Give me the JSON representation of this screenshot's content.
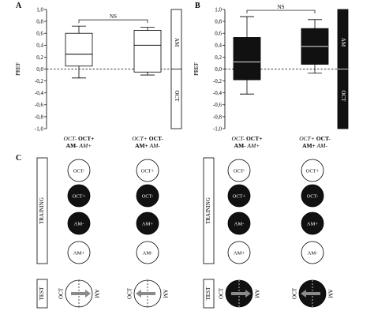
{
  "panels": {
    "A": "A",
    "B": "B",
    "C": "C"
  },
  "chart_data": [
    {
      "type": "box",
      "panel": "A",
      "ylabel": "PREF",
      "ylim": [
        -1.0,
        1.0
      ],
      "yticks": [
        "1,0",
        "0,8",
        "0,6",
        "0,4",
        "0,2",
        "0,0",
        "-0,2",
        "-0,4",
        "-0,6",
        "-0,8",
        "-1,0"
      ],
      "ytick_values": [
        1.0,
        0.8,
        0.6,
        0.4,
        0.2,
        0.0,
        -0.2,
        -0.4,
        -0.6,
        -0.8,
        -1.0
      ],
      "significance": "NS",
      "side_labels": {
        "top": "AM",
        "bottom": "OCT"
      },
      "fill": "#ffffff",
      "boxes": [
        {
          "label_parts": [
            [
              "OCT-",
              "i"
            ],
            [
              " OCT+",
              "b"
            ],
            [
              "AM-",
              "b"
            ],
            [
              " AM+",
              "i"
            ]
          ],
          "whisker_low": -0.15,
          "q1": 0.05,
          "median": 0.25,
          "q3": 0.6,
          "whisker_high": 0.72
        },
        {
          "label_parts": [
            [
              "OCT+",
              "i"
            ],
            [
              " OCT-",
              "b"
            ],
            [
              "AM+",
              "b"
            ],
            [
              " AM-",
              "i"
            ]
          ],
          "whisker_low": -0.1,
          "q1": -0.05,
          "median": 0.4,
          "q3": 0.65,
          "whisker_high": 0.7
        }
      ]
    },
    {
      "type": "box",
      "panel": "B",
      "ylabel": "PREF",
      "ylim": [
        -1.0,
        1.0
      ],
      "yticks": [
        "1,0",
        "0,8",
        "0,6",
        "0,4",
        "0,2",
        "0,0",
        "-0,2",
        "-0,4",
        "-0,6",
        "-0,8",
        "-1,0"
      ],
      "ytick_values": [
        1.0,
        0.8,
        0.6,
        0.4,
        0.2,
        0.0,
        -0.2,
        -0.4,
        -0.6,
        -0.8,
        -1.0
      ],
      "significance": "NS",
      "side_labels": {
        "top": "AM",
        "bottom": "OCT"
      },
      "fill": "#111111",
      "boxes": [
        {
          "label_parts": [
            [
              "OCT-",
              "i"
            ],
            [
              " OCT+",
              "b"
            ],
            [
              "AM-",
              "b"
            ],
            [
              " AM+",
              "i"
            ]
          ],
          "whisker_low": -0.42,
          "q1": -0.18,
          "median": 0.12,
          "q3": 0.53,
          "whisker_high": 0.88
        },
        {
          "label_parts": [
            [
              "OCT+",
              "i"
            ],
            [
              " OCT-",
              "b"
            ],
            [
              "AM+",
              "b"
            ],
            [
              " AM-",
              "i"
            ]
          ],
          "whisker_low": -0.07,
          "q1": 0.08,
          "median": 0.38,
          "q3": 0.68,
          "whisker_high": 0.83
        }
      ]
    }
  ],
  "panel_c": {
    "training_label": "TRAINING",
    "test_label": "TEST",
    "test_left": "OCT",
    "test_right": "AM",
    "groups": [
      {
        "dark": false,
        "columns": [
          {
            "circles": [
              {
                "text": "OCT-",
                "filled": false
              },
              {
                "text": "OCT+",
                "filled": true
              },
              {
                "text": "AM-",
                "filled": true
              },
              {
                "text": "AM+",
                "filled": false
              }
            ],
            "arrow": "right"
          },
          {
            "circles": [
              {
                "text": "OCT+",
                "filled": false
              },
              {
                "text": "OCT-",
                "filled": true
              },
              {
                "text": "AM+",
                "filled": true
              },
              {
                "text": "AM-",
                "filled": false
              }
            ],
            "arrow": "left"
          }
        ]
      },
      {
        "dark": true,
        "columns": [
          {
            "circles": [
              {
                "text": "OCT-",
                "filled": false
              },
              {
                "text": "OCT+",
                "filled": true
              },
              {
                "text": "AM-",
                "filled": true
              },
              {
                "text": "AM+",
                "filled": false
              }
            ],
            "arrow": "right"
          },
          {
            "circles": [
              {
                "text": "OCT+",
                "filled": false
              },
              {
                "text": "OCT-",
                "filled": true
              },
              {
                "text": "AM+",
                "filled": true
              },
              {
                "text": "AM-",
                "filled": false
              }
            ],
            "arrow": "left"
          }
        ]
      }
    ]
  }
}
